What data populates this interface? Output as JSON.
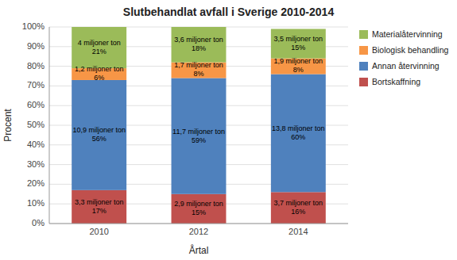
{
  "chart_data": {
    "type": "bar",
    "stacked": true,
    "title": "Slutbehandlat avfall i Sverige 2010-2014",
    "x_label": "Årtal",
    "y_label": "Procent",
    "categories": [
      "2010",
      "2012",
      "2014"
    ],
    "series": [
      {
        "name": "Bortskaffning",
        "color": "#c0504d",
        "values": [
          17,
          15,
          16
        ],
        "value_labels": [
          "3,3 miljoner ton\n17%",
          "2,9 miljoner ton\n15%",
          "3,7 miljoner ton\n16%"
        ]
      },
      {
        "name": "Annan återvinning",
        "color": "#4f81bd",
        "values": [
          56,
          59,
          60
        ],
        "value_labels": [
          "10,9 miljoner ton\n56%",
          "11,7 miljoner ton\n59%",
          "13,8 miljoner ton\n60%"
        ]
      },
      {
        "name": "Biologisk behandling",
        "color": "#f79646",
        "values": [
          6,
          8,
          8
        ],
        "value_labels": [
          "1,2 miljoner ton\n6%",
          "1,7 miljoner ton\n8%",
          "1,9 miljoner ton\n8%"
        ]
      },
      {
        "name": "Materialåtervinning",
        "color": "#9bbb59",
        "values": [
          21,
          18,
          15
        ],
        "value_labels": [
          "4 miljoner ton\n21%",
          "3,6 miljoner ton\n18%",
          "3,5 miljoner ton\n15%"
        ]
      }
    ],
    "ylim": [
      0,
      100
    ],
    "yticks": [
      {
        "value": 0,
        "label": "0%"
      },
      {
        "value": 10,
        "label": "10%"
      },
      {
        "value": 20,
        "label": "20%"
      },
      {
        "value": 30,
        "label": "30%"
      },
      {
        "value": 40,
        "label": "40%"
      },
      {
        "value": 50,
        "label": "50%"
      },
      {
        "value": 60,
        "label": "60%"
      },
      {
        "value": 70,
        "label": "70%"
      },
      {
        "value": 80,
        "label": "80%"
      },
      {
        "value": 90,
        "label": "90%"
      },
      {
        "value": 100,
        "label": "100%"
      }
    ],
    "grid": true,
    "data_labels": true,
    "legend": "right"
  }
}
